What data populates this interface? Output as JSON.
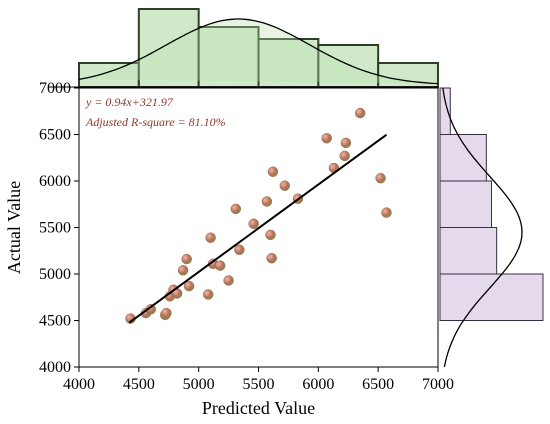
{
  "chart_data": {
    "type": "scatter",
    "xlabel": "Predicted Value",
    "ylabel": "Actual Value",
    "xlim": [
      4000,
      7000
    ],
    "ylim": [
      4000,
      7000
    ],
    "xticks": [
      "4000",
      "4500",
      "5000",
      "5500",
      "6000",
      "6500",
      "7000"
    ],
    "yticks": [
      "4000",
      "4500",
      "5000",
      "5500",
      "6000",
      "6500",
      "7000"
    ],
    "grid": false,
    "annotation": {
      "equation": "y = 0.94x+321.97",
      "r2": "Adjusted R-square = 81.10%",
      "color": "#8b3a2a"
    },
    "fit": {
      "slope": 0.94,
      "intercept": 321.97,
      "x_range": [
        4420,
        6570
      ],
      "color": "#000000"
    },
    "point_color": "#b7705a",
    "points": [
      [
        4430,
        4520
      ],
      [
        4560,
        4580
      ],
      [
        4600,
        4620
      ],
      [
        4720,
        4560
      ],
      [
        4730,
        4580
      ],
      [
        4760,
        4760
      ],
      [
        4790,
        4830
      ],
      [
        4820,
        4790
      ],
      [
        4870,
        5040
      ],
      [
        4900,
        5160
      ],
      [
        4920,
        4870
      ],
      [
        5080,
        4780
      ],
      [
        5100,
        5390
      ],
      [
        5120,
        5110
      ],
      [
        5180,
        5090
      ],
      [
        5250,
        4930
      ],
      [
        5310,
        5700
      ],
      [
        5340,
        5260
      ],
      [
        5460,
        5540
      ],
      [
        5570,
        5780
      ],
      [
        5600,
        5420
      ],
      [
        5610,
        5170
      ],
      [
        5620,
        6100
      ],
      [
        5720,
        5950
      ],
      [
        5830,
        5810
      ],
      [
        6070,
        6460
      ],
      [
        6130,
        6140
      ],
      [
        6220,
        6270
      ],
      [
        6230,
        6410
      ],
      [
        6350,
        6730
      ],
      [
        6520,
        6030
      ],
      [
        6570,
        5660
      ]
    ],
    "top_histogram": {
      "color": "#c8e6c0",
      "edge": "#2f3d2a",
      "bins": [
        4000,
        4500,
        5000,
        5500,
        6000,
        6500,
        7000
      ],
      "values": [
        4,
        13,
        10,
        8,
        7,
        4
      ]
    },
    "right_histogram": {
      "color": "#e2d5ea",
      "edge": "#3b2d46",
      "bins": [
        4500,
        5000,
        5500,
        6000,
        6500,
        7000
      ],
      "values": [
        10,
        5.5,
        5,
        4.5,
        1
      ]
    }
  }
}
